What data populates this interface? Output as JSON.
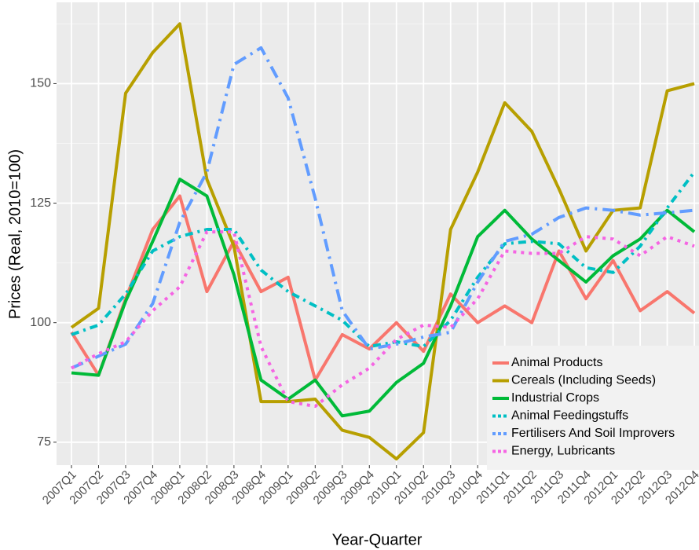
{
  "chart_data": {
    "type": "line",
    "x_label": "Year-Quarter",
    "y_label": "Prices (Real, 2010=100)",
    "categories": [
      "2007Q1",
      "2007Q2",
      "2007Q3",
      "2007Q4",
      "2008Q1",
      "2008Q2",
      "2008Q3",
      "2008Q4",
      "2009Q1",
      "2009Q2",
      "2009Q3",
      "2009Q4",
      "2010Q1",
      "2010Q2",
      "2010Q3",
      "2010Q4",
      "2011Q1",
      "2011Q2",
      "2011Q3",
      "2011Q4",
      "2012Q1",
      "2012Q2",
      "2012Q3",
      "2012Q4"
    ],
    "ylim": [
      70.2,
      167
    ],
    "yticks": [
      75,
      100,
      125,
      150
    ],
    "grid": true,
    "legend": "bottom-right",
    "series": [
      {
        "name": "Animal Products",
        "color": "#F8766D",
        "linetype": "solid",
        "values": [
          98,
          89,
          105,
          119.5,
          126.5,
          106.5,
          117,
          106.5,
          109.5,
          88,
          97.5,
          94.5,
          100,
          94,
          106,
          100,
          103.5,
          100,
          115,
          105,
          113,
          102.5,
          106.5,
          102
        ]
      },
      {
        "name": "Cereals (Including Seeds)",
        "color": "#B79F00",
        "linetype": "solid",
        "values": [
          99,
          103,
          148,
          156.5,
          162.5,
          130,
          116,
          83.5,
          83.5,
          84,
          77.5,
          76,
          71.5,
          77,
          119.5,
          131.5,
          146,
          140,
          128,
          115,
          123.5,
          124,
          148.5,
          150
        ]
      },
      {
        "name": "Industrial Crops",
        "color": "#00BA38",
        "linetype": "solid",
        "values": [
          89.5,
          89,
          104.5,
          117,
          130,
          126.5,
          110,
          88,
          84,
          88,
          80.5,
          81.5,
          87.5,
          91.5,
          103.5,
          118,
          123.5,
          117.5,
          113,
          108.5,
          114,
          117.5,
          123.5,
          119
        ]
      },
      {
        "name": "Animal Feedingstuffs",
        "color": "#00BFC4",
        "linetype": "dotdash",
        "values": [
          97.5,
          99.5,
          106,
          115,
          118,
          119.5,
          119.5,
          111,
          106.5,
          103.5,
          100.5,
          95,
          96,
          95,
          100.5,
          109.5,
          116.5,
          117,
          116.5,
          111.5,
          110.5,
          116,
          124,
          131.5
        ]
      },
      {
        "name": "Fertilisers And Soil Improvers",
        "color": "#619CFF",
        "linetype": "longdash-dot",
        "values": [
          90.5,
          93,
          95.5,
          104,
          121,
          131.5,
          154,
          157.5,
          147,
          126,
          102.5,
          94.5,
          95.5,
          97,
          98,
          108.5,
          117,
          118.5,
          122,
          124,
          123.5,
          122.5,
          123,
          123.5
        ]
      },
      {
        "name": "Energy, Lubricants",
        "color": "#F564E3",
        "linetype": "dotted",
        "values": [
          90.5,
          93.5,
          96,
          102.5,
          107.5,
          119,
          119,
          95,
          83.5,
          82.5,
          87,
          90.5,
          96.5,
          99.5,
          99,
          105,
          115,
          114.5,
          114.5,
          118,
          117.5,
          114,
          118,
          116
        ]
      }
    ]
  }
}
